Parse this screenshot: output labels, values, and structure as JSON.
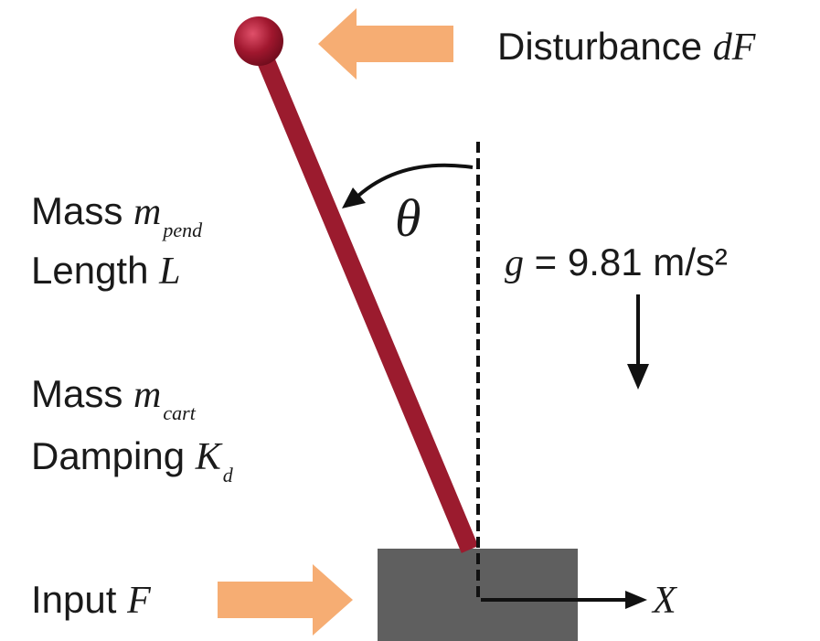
{
  "disturbance": {
    "text": "Disturbance",
    "symbol": "dF"
  },
  "pendulum": {
    "mass_text": "Mass",
    "mass_symbol": "m",
    "mass_subscript": "pend",
    "length_text": "Length",
    "length_symbol": "L"
  },
  "cart": {
    "mass_text": "Mass",
    "mass_symbol": "m",
    "mass_subscript": "cart",
    "damping_text": "Damping",
    "damping_symbol": "K",
    "damping_subscript": "d"
  },
  "input": {
    "text": "Input",
    "symbol": "F"
  },
  "angle": {
    "symbol": "θ"
  },
  "gravity": {
    "symbol": "g",
    "value_text": "= 9.81 m/s²"
  },
  "axis": {
    "symbol": "X"
  },
  "colors": {
    "pendulum": "#9b1b2e",
    "bob": "#a0172e",
    "cart": "#5f5f5f",
    "force_arrow": "#f6ad73",
    "line": "#111111"
  }
}
